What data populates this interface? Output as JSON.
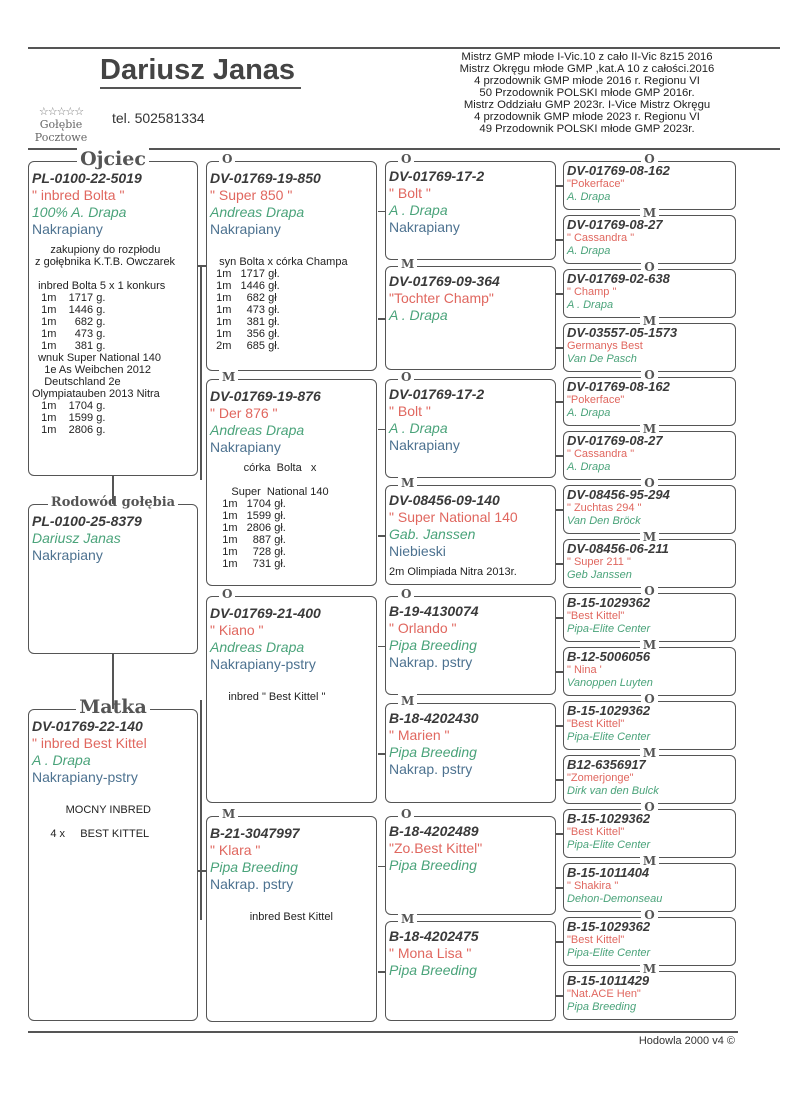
{
  "header": {
    "owner": "Dariusz Janas",
    "phone": "tel. 502581334",
    "logo_text": [
      "Gołębie",
      "Pocztowe"
    ],
    "logo_stars": "☆☆☆☆☆",
    "awards": [
      "Mistrz GMP młode  I-Vic.10 z cało II-Vic 8z15 2016",
      "Mistrz Okręgu młode GMP ,kat.A 10 z całości.2016",
      "4 przodownik GMP młode 2016 r. Regionu VI",
      "50 Przodownik POLSKI młode GMP 2016r.",
      "Mistrz Oddziału GMP 2023r.  I-Vice Mistrz Okręgu",
      "4 przodownik GMP młode 2023 r.  Regionu VI",
      "49 Przodownik POLSKI młode  GMP 2023r."
    ]
  },
  "colors": {
    "ring": "#3a3a3a",
    "name": "#e0675f",
    "breeder": "#4aa37a",
    "color": "#4d7290"
  },
  "pigeon": {
    "label": "Rodowód gołębia",
    "ring": "PL-0100-25-8379",
    "name": "",
    "breeder": "Dariusz Janas",
    "color": "Nakrapiany",
    "notes": ""
  },
  "father": {
    "label": "Ojciec",
    "ring": "PL-0100-22-5019",
    "name": "\" inbred Bolta \"",
    "breeder": "100% A. Drapa",
    "color": "Nakrapiany",
    "notes": "      zakupiony do rozpłodu\n z gołębnika K.T.B. Owczarek\n\n  inbred Bolta 5 x 1 konkurs\n   1m    1717 g.\n   1m    1446 g.\n   1m      682 g.\n   1m      473 g.\n   1m      381 g.\n  wnuk Super National 140\n    1e As Weibchen 2012\n    Deutschland 2e\nOlympiatauben 2013 Nitra\n   1m    1704 g.\n   1m    1599 g.\n   1m    2806 g."
  },
  "mother": {
    "label": "Matka",
    "ring": "DV-01769-22-140",
    "name": "\" inbred Best Kittel",
    "breeder": "A . Drapa",
    "color": "Nakrapiany-pstry",
    "notes": "\n           MOCNY INBRED\n\n      4 x     BEST KITTEL"
  },
  "grandparents": [
    {
      "label": "O",
      "ring": "DV-01769-19-850",
      "name": "\" Super 850 \"",
      "breeder": "Andreas Drapa",
      "color": "Nakrapiany",
      "notes": "\n   syn Bolta x córka Champa\n  1m   1717 gł.\n  1m   1446 gł.\n  1m     682 gł\n  1m     473 gł.\n  1m     381 gł.\n  1m     356 gł.\n  2m     685 gł."
    },
    {
      "label": "M",
      "ring": "DV-01769-19-876",
      "name": " \" Der 876 \"",
      "breeder": "Andreas Drapa",
      "color": "Nakrapiany",
      "notes": "           córka  Bolta   x\n\n       Super  National 140\n    1m   1704 gł.\n    1m   1599 gł.\n    1m   2806 gł.\n    1m     887 gł.\n    1m     728 gł.\n    1m     731 gł."
    },
    {
      "label": "O",
      "ring": "DV-01769-21-400",
      "name": "\" Kiano \"",
      "breeder": "Andreas Drapa",
      "color": "Nakrapiany-pstry",
      "notes": "\n      inbred \" Best Kittel \""
    },
    {
      "label": "M",
      "ring": "B-21-3047997",
      "name": " \" Klara \"",
      "breeder": "Pipa Breeding",
      "color": "Nakrap. pstry",
      "notes": "\n             inbred Best Kittel"
    }
  ],
  "great_grandparents": [
    {
      "label": "O",
      "ring": "DV-01769-17-2",
      "name": "\" Bolt \"",
      "breeder": "A . Drapa",
      "color": "Nakrapiany",
      "notes": ""
    },
    {
      "label": "M",
      "ring": "DV-01769-09-364",
      "name": "\"Tochter Champ\"",
      "breeder": "A . Drapa",
      "color": "",
      "notes": ""
    },
    {
      "label": "O",
      "ring": "DV-01769-17-2",
      "name": "\" Bolt \"",
      "breeder": "A . Drapa",
      "color": "Nakrapiany",
      "notes": ""
    },
    {
      "label": "M",
      "ring": "DV-08456-09-140",
      "name": "\" Super National 140",
      "breeder": "Gab. Janssen",
      "color": "Niebieski",
      "notes": "2m Olimpiada Nitra 2013r."
    },
    {
      "label": "O",
      "ring": "B-19-4130074",
      "name": "\" Orlando \"",
      "breeder": "Pipa Breeding",
      "color": "Nakrap. pstry",
      "notes": ""
    },
    {
      "label": "M",
      "ring": "B-18-4202430",
      "name": "\" Marien \"",
      "breeder": "Pipa Breeding",
      "color": "Nakrap. pstry",
      "notes": ""
    },
    {
      "label": "O",
      "ring": "B-18-4202489",
      "name": "\"Zo.Best Kittel\"",
      "breeder": "Pipa Breeding",
      "color": "",
      "notes": ""
    },
    {
      "label": "M",
      "ring": "B-18-4202475",
      "name": "\" Mona Lisa \"",
      "breeder": "Pipa Breeding",
      "color": "",
      "notes": ""
    }
  ],
  "gg_grandparents": [
    {
      "label": "O",
      "ring": "DV-01769-08-162",
      "name": "\"Pokerface\"",
      "breeder": "A. Drapa"
    },
    {
      "label": "M",
      "ring": "DV-01769-08-27",
      "name": "\" Cassandra \"",
      "breeder": "A. Drapa"
    },
    {
      "label": "O",
      "ring": "DV-01769-02-638",
      "name": "\" Champ \"",
      "breeder": "A . Drapa"
    },
    {
      "label": "M",
      "ring": "DV-03557-05-1573",
      "name": "Germanys Best",
      "breeder": "Van De Pasch"
    },
    {
      "label": "O",
      "ring": "DV-01769-08-162",
      "name": "\"Pokerface\"",
      "breeder": "A. Drapa"
    },
    {
      "label": "M",
      "ring": "DV-01769-08-27",
      "name": "\" Cassandra \"",
      "breeder": "A. Drapa"
    },
    {
      "label": "O",
      "ring": "DV-08456-95-294",
      "name": "\" Zuchtas 294 \"",
      "breeder": "Van Den Bröck"
    },
    {
      "label": "M",
      "ring": "DV-08456-06-211",
      "name": "\" Super 211 \"",
      "breeder": "Geb Janssen"
    },
    {
      "label": "O",
      "ring": "B-15-1029362",
      "name": "\"Best Kittel\"",
      "breeder": "Pipa-Elite Center"
    },
    {
      "label": "M",
      "ring": "B-12-5006056",
      "name": "\" Nina '",
      "breeder": "Vanoppen Luyten"
    },
    {
      "label": "O",
      "ring": "B-15-1029362",
      "name": "\"Best Kittel\"",
      "breeder": "Pipa-Elite Center"
    },
    {
      "label": "M",
      "ring": "B12-6356917",
      "name": "\"Zomerjonge\"",
      "breeder": "Dirk van den Bulck"
    },
    {
      "label": "O",
      "ring": "B-15-1029362",
      "name": "\"Best Kittel\"",
      "breeder": "Pipa-Elite Center"
    },
    {
      "label": "M",
      "ring": "B-15-1011404",
      "name": "\" Shakira \"",
      "breeder": "Dehon-Demonseau"
    },
    {
      "label": "O",
      "ring": "B-15-1029362",
      "name": "\"Best Kittel\"",
      "breeder": "Pipa-Elite Center"
    },
    {
      "label": "M",
      "ring": "B-15-1011429",
      "name": "\"Nat.ACE Hen\"",
      "breeder": "Pipa Breeding"
    }
  ],
  "footer": "Hodowla 2000 v4 ©"
}
